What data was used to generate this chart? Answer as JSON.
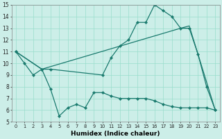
{
  "xlabel": "Humidex (Indice chaleur)",
  "bg_color": "#cceee8",
  "grid_color": "#99ddcc",
  "line_color": "#1a7a6e",
  "xlim": [
    -0.5,
    23.5
  ],
  "ylim": [
    5,
    15
  ],
  "xticks": [
    0,
    1,
    2,
    3,
    4,
    5,
    6,
    7,
    8,
    9,
    10,
    11,
    12,
    13,
    14,
    15,
    16,
    17,
    18,
    19,
    20,
    21,
    22,
    23
  ],
  "yticks": [
    5,
    6,
    7,
    8,
    9,
    10,
    11,
    12,
    13,
    14,
    15
  ],
  "series": [
    {
      "x": [
        0,
        1,
        2,
        3,
        4,
        10,
        11,
        12,
        13,
        14,
        15,
        16,
        17,
        18,
        19,
        20,
        21,
        22,
        23
      ],
      "y": [
        11,
        10,
        9,
        9.5,
        9.5,
        9,
        10.5,
        11.5,
        12,
        13.5,
        13.5,
        15,
        14.5,
        14,
        13,
        13,
        10.8,
        8,
        6
      ],
      "markers": true
    },
    {
      "x": [
        0,
        3,
        19,
        20,
        23
      ],
      "y": [
        11,
        9.5,
        13,
        13.2,
        6
      ],
      "markers": false
    },
    {
      "x": [
        0,
        3,
        4,
        5,
        6,
        7,
        8,
        9,
        10,
        11,
        12,
        13,
        14,
        15,
        16,
        17,
        18,
        19,
        20,
        21,
        22,
        23
      ],
      "y": [
        11,
        9.5,
        7.8,
        5.5,
        6.2,
        6.5,
        6.2,
        7.5,
        7.5,
        7.2,
        7.0,
        7.0,
        7.0,
        7.0,
        6.8,
        6.5,
        6.3,
        6.2,
        6.2,
        6.2,
        6.2,
        6.0
      ],
      "markers": true
    }
  ]
}
